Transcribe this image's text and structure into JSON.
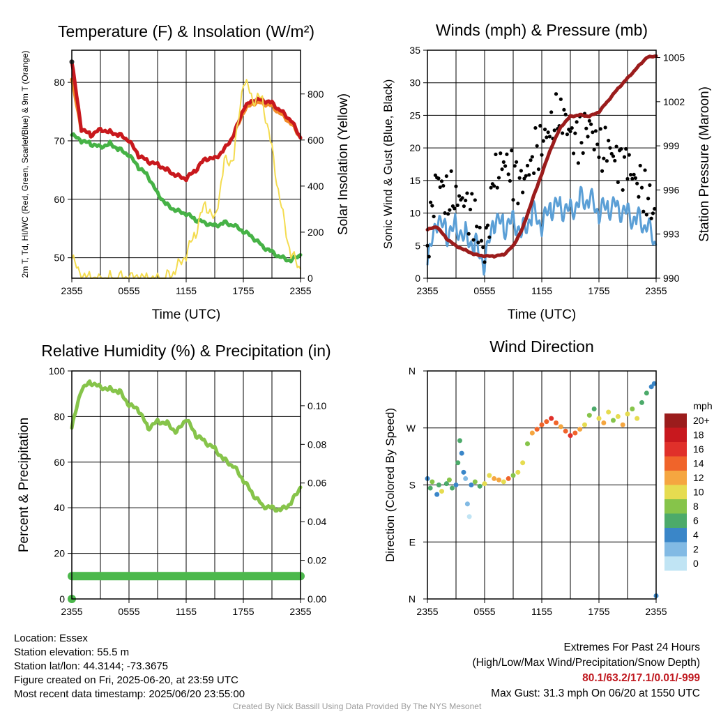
{
  "chart_data": [
    {
      "type": "line",
      "title": "Temperature (F) & Insolation (W/m²)",
      "xlabel": "Time (UTC)",
      "ylabel": "2m T, Td, HI/WC (Red, Green, Scarlet/Blue) & 9m T (Orange)",
      "y2label": "Solar Insolation (Yellow)",
      "x_ticks": [
        "2355",
        "0555",
        "1155",
        "1755",
        "2355"
      ],
      "ylim": [
        46.5,
        85.5
      ],
      "y_ticks": [
        50,
        60,
        70,
        80
      ],
      "y2lim": [
        0,
        990
      ],
      "y2_ticks": [
        0,
        200,
        400,
        600,
        800
      ],
      "grid": true,
      "x_hours": [
        0,
        1,
        2,
        3,
        4,
        5,
        6,
        7,
        8,
        9,
        10,
        11,
        12,
        13,
        14,
        15,
        16,
        17,
        18,
        19,
        20,
        21,
        22,
        23,
        24
      ],
      "series": [
        {
          "color": "#46b246",
          "axis": "left",
          "values": [
            71,
            70,
            69.5,
            69,
            69.5,
            68.5,
            67.5,
            65.5,
            64,
            61,
            59,
            58,
            57.5,
            56.5,
            56,
            55.5,
            56,
            55.5,
            54.5,
            53.5,
            52,
            51,
            50,
            49.5,
            50.5
          ]
        },
        {
          "color": "#f28c28",
          "axis": "left",
          "values": [
            80.5,
            72,
            71,
            72,
            71.5,
            71,
            70,
            67.5,
            66.5,
            66,
            65,
            64,
            63.5,
            65,
            67,
            67,
            68.5,
            71,
            75,
            76.5,
            76.5,
            76,
            74.5,
            73,
            70.5
          ]
        },
        {
          "color": "#c8181e",
          "axis": "left",
          "values": [
            83.5,
            72,
            71,
            72,
            71.5,
            71,
            70,
            67.5,
            66.5,
            66,
            65,
            64,
            63.5,
            65,
            67,
            67,
            68.5,
            71,
            75.5,
            77,
            77,
            76.5,
            75,
            73.5,
            70.5
          ]
        },
        {
          "color": "#f4dc50",
          "axis": "y2",
          "values": [
            85,
            5,
            0,
            0,
            0,
            0,
            0,
            0,
            0,
            0,
            5,
            40,
            100,
            200,
            330,
            250,
            500,
            520,
            860,
            780,
            780,
            560,
            300,
            100,
            40
          ]
        }
      ]
    },
    {
      "type": "line",
      "title": "Winds (mph) & Pressure (mb)",
      "xlabel": "Time (UTC)",
      "ylabel": "Sonic Wind & Gust (Blue, Black)",
      "y2label": "Station Pressure (Maroon)",
      "x_ticks": [
        "2355",
        "0555",
        "1155",
        "1755",
        "2355"
      ],
      "ylim": [
        0,
        35
      ],
      "y_ticks": [
        0,
        5,
        10,
        15,
        20,
        25,
        30,
        35
      ],
      "y2lim": [
        990,
        1005.5
      ],
      "y2_ticks": [
        990,
        993,
        996,
        999,
        1002,
        1005
      ],
      "grid": true,
      "x_hours": [
        0,
        1,
        2,
        3,
        4,
        5,
        6,
        7,
        8,
        9,
        10,
        11,
        12,
        13,
        14,
        15,
        16,
        17,
        18,
        19,
        20,
        21,
        22,
        23,
        24
      ],
      "series": [
        {
          "color": "#5b9fd6",
          "axis": "left",
          "name_hint": "sonic wind",
          "values": [
            2,
            9,
            7,
            8,
            6.5,
            5,
            2,
            9,
            8,
            9,
            7,
            10,
            8,
            11,
            11,
            10.5,
            12,
            12,
            10,
            11,
            11,
            10,
            9,
            8,
            5
          ]
        },
        {
          "color": "#000000",
          "axis": "left",
          "name_hint": "gust",
          "values": [
            5,
            16,
            12,
            13,
            11,
            9,
            4,
            15,
            18,
            16,
            14,
            19,
            21,
            23,
            26,
            22,
            21,
            24,
            19,
            20,
            18,
            17,
            15,
            13,
            9
          ]
        },
        {
          "color": "#9b1c1c",
          "axis": "y2",
          "name_hint": "pressure",
          "values": [
            993.3,
            993.5,
            992.7,
            992.2,
            991.9,
            991.6,
            991.5,
            991.5,
            991.6,
            992.2,
            993.4,
            995.3,
            997.1,
            998.9,
            1000.3,
            1001.0,
            1001.1,
            1001.0,
            1001.3,
            1002.1,
            1002.9,
            1003.6,
            1004.3,
            1005.0,
            1005.1
          ]
        }
      ]
    },
    {
      "type": "line",
      "title": "Relative Humidity (%) & Precipitation (in)",
      "ylabel": "Percent & Precipitation",
      "x_ticks": [
        "2355",
        "0555",
        "1155",
        "1755",
        "2355"
      ],
      "ylim": [
        0,
        100
      ],
      "y_ticks": [
        0,
        20,
        40,
        60,
        80,
        100
      ],
      "y2lim": [
        0,
        0.118
      ],
      "y2_ticks": [
        0.0,
        0.02,
        0.04,
        0.06,
        0.08,
        0.1
      ],
      "grid": true,
      "x_hours": [
        0,
        1,
        2,
        3,
        4,
        5,
        6,
        7,
        8,
        9,
        10,
        11,
        12,
        13,
        14,
        15,
        16,
        17,
        18,
        19,
        20,
        21,
        22,
        23,
        24
      ],
      "series": [
        {
          "color": "#86c44a",
          "axis": "left",
          "values": [
            75,
            92,
            95,
            93,
            92,
            91,
            85,
            83,
            75,
            78,
            77,
            73,
            79,
            72,
            69,
            66,
            61,
            58,
            52,
            46,
            41,
            40,
            39,
            42,
            49
          ]
        },
        {
          "color": "#4cb84c",
          "axis": "left",
          "values": [
            10,
            10,
            10,
            10,
            10,
            10,
            10,
            10,
            10,
            10,
            10,
            10,
            10,
            10,
            10,
            10,
            10,
            10,
            10,
            10,
            10,
            10,
            10,
            10,
            10
          ]
        }
      ]
    },
    {
      "type": "scatter",
      "title": "Wind Direction",
      "ylabel": "Direction (Colored By Speed)",
      "x_ticks": [
        "2355",
        "0555",
        "1155",
        "1755",
        "2355"
      ],
      "y_ticks": [
        "N",
        "E",
        "S",
        "W",
        "N"
      ],
      "ylim": [
        0,
        360
      ],
      "grid": true,
      "legend_title": "mph",
      "legend_labels": [
        "20+",
        "18",
        "16",
        "14",
        "12",
        "10",
        "8",
        "6",
        "4",
        "2",
        "0"
      ],
      "legend_colors": [
        "#9b1c1c",
        "#c8181e",
        "#e0302a",
        "#f0642a",
        "#f5a640",
        "#e6dc50",
        "#86c44a",
        "#4caa6a",
        "#3a86c8",
        "#82bae4",
        "#c0e4f4"
      ],
      "points": [
        {
          "x": 0.0,
          "y": 190,
          "speed": 4
        },
        {
          "x": 0.3,
          "y": 175,
          "speed": 6
        },
        {
          "x": 0.5,
          "y": 185,
          "speed": 8
        },
        {
          "x": 1.0,
          "y": 165,
          "speed": 4
        },
        {
          "x": 1.2,
          "y": 180,
          "speed": 6
        },
        {
          "x": 1.5,
          "y": 170,
          "speed": 10
        },
        {
          "x": 2.0,
          "y": 182,
          "speed": 6
        },
        {
          "x": 2.3,
          "y": 188,
          "speed": 8
        },
        {
          "x": 2.6,
          "y": 175,
          "speed": 6
        },
        {
          "x": 3.0,
          "y": 180,
          "speed": 4
        },
        {
          "x": 3.2,
          "y": 215,
          "speed": 6
        },
        {
          "x": 3.4,
          "y": 250,
          "speed": 6
        },
        {
          "x": 3.6,
          "y": 230,
          "speed": 4
        },
        {
          "x": 3.8,
          "y": 200,
          "speed": 4
        },
        {
          "x": 4.0,
          "y": 190,
          "speed": 2
        },
        {
          "x": 4.2,
          "y": 150,
          "speed": 2
        },
        {
          "x": 4.4,
          "y": 130,
          "speed": 0
        },
        {
          "x": 4.6,
          "y": 180,
          "speed": 4
        },
        {
          "x": 5.0,
          "y": 185,
          "speed": 8
        },
        {
          "x": 5.5,
          "y": 178,
          "speed": 6
        },
        {
          "x": 6.0,
          "y": 182,
          "speed": 10
        },
        {
          "x": 6.5,
          "y": 195,
          "speed": 10
        },
        {
          "x": 7.0,
          "y": 190,
          "speed": 12
        },
        {
          "x": 7.5,
          "y": 188,
          "speed": 12
        },
        {
          "x": 8.0,
          "y": 185,
          "speed": 10
        },
        {
          "x": 8.5,
          "y": 190,
          "speed": 14
        },
        {
          "x": 9.0,
          "y": 195,
          "speed": 8
        },
        {
          "x": 9.5,
          "y": 200,
          "speed": 10
        },
        {
          "x": 10.0,
          "y": 215,
          "speed": 10
        },
        {
          "x": 10.5,
          "y": 245,
          "speed": 8
        },
        {
          "x": 11.0,
          "y": 262,
          "speed": 12
        },
        {
          "x": 11.5,
          "y": 268,
          "speed": 14
        },
        {
          "x": 12.0,
          "y": 275,
          "speed": 14
        },
        {
          "x": 12.5,
          "y": 280,
          "speed": 14
        },
        {
          "x": 13.0,
          "y": 285,
          "speed": 16
        },
        {
          "x": 13.5,
          "y": 278,
          "speed": 14
        },
        {
          "x": 14.0,
          "y": 272,
          "speed": 12
        },
        {
          "x": 14.5,
          "y": 265,
          "speed": 14
        },
        {
          "x": 15.0,
          "y": 258,
          "speed": 16
        },
        {
          "x": 15.5,
          "y": 262,
          "speed": 14
        },
        {
          "x": 16.0,
          "y": 268,
          "speed": 12
        },
        {
          "x": 16.5,
          "y": 275,
          "speed": 10
        },
        {
          "x": 17.0,
          "y": 290,
          "speed": 8
        },
        {
          "x": 17.5,
          "y": 300,
          "speed": 6
        },
        {
          "x": 18.0,
          "y": 285,
          "speed": 10
        },
        {
          "x": 18.5,
          "y": 278,
          "speed": 12
        },
        {
          "x": 19.0,
          "y": 295,
          "speed": 10
        },
        {
          "x": 19.5,
          "y": 282,
          "speed": 8
        },
        {
          "x": 20.0,
          "y": 288,
          "speed": 10
        },
        {
          "x": 20.5,
          "y": 275,
          "speed": 12
        },
        {
          "x": 21.0,
          "y": 292,
          "speed": 10
        },
        {
          "x": 21.5,
          "y": 300,
          "speed": 8
        },
        {
          "x": 22.0,
          "y": 285,
          "speed": 10
        },
        {
          "x": 22.5,
          "y": 310,
          "speed": 6
        },
        {
          "x": 23.0,
          "y": 325,
          "speed": 6
        },
        {
          "x": 23.5,
          "y": 335,
          "speed": 4
        },
        {
          "x": 23.8,
          "y": 340,
          "speed": 4
        },
        {
          "x": 24.0,
          "y": 5,
          "speed": 4
        }
      ]
    }
  ],
  "footer": {
    "location": "Location: Essex",
    "elevation": "Station elevation: 55.5 m",
    "latlon": "Station lat/lon: 44.3144; -73.3675",
    "created": "Figure created on Fri, 2025-06-20, at 23:59 UTC",
    "timestamp": "Most recent data timestamp: 2025/06/20 23:55:00",
    "extremes_title": "Extremes For Past 24 Hours",
    "extremes_subtitle": "(High/Low/Max Wind/Precipitation/Snow Depth)",
    "extremes_values": "80.1/63.2/17.1/0.01/-999",
    "max_gust": "Max Gust: 31.3 mph On 06/20 at 1550 UTC",
    "credit": "Created By Nick Bassill Using Data Provided By The NYS Mesonet"
  }
}
